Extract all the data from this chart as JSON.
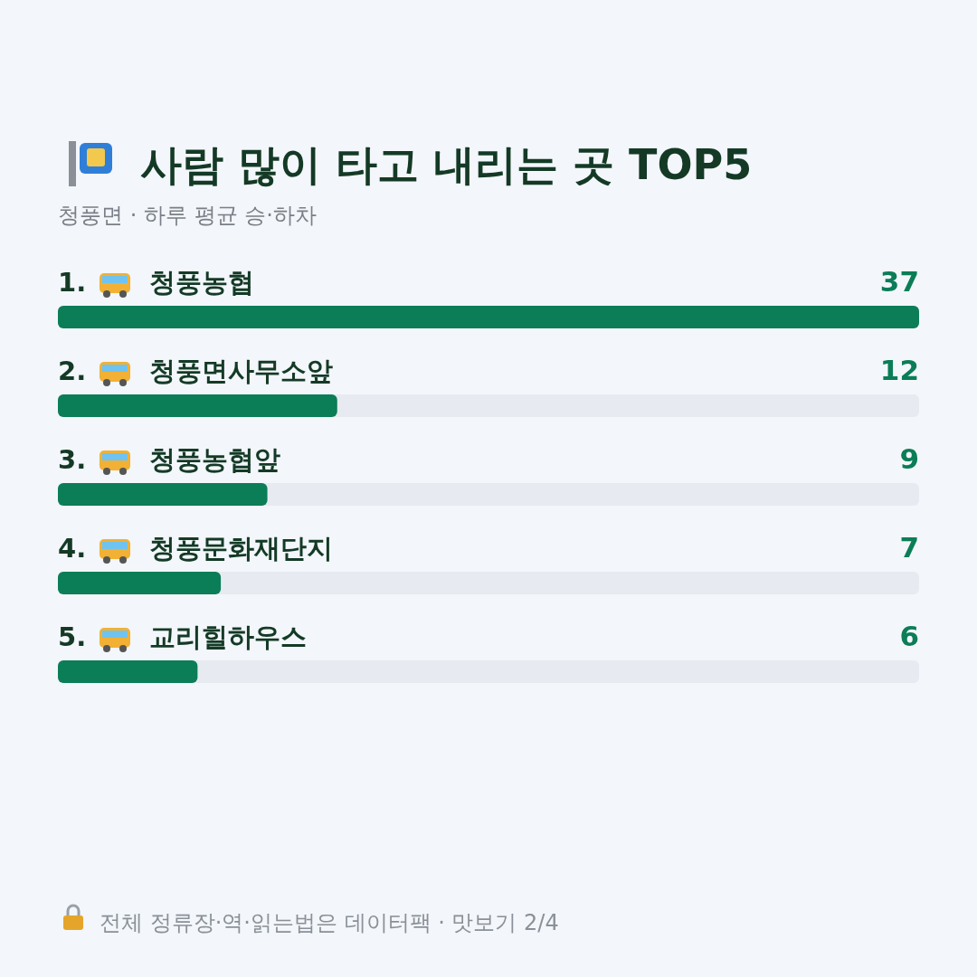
{
  "chart_data": {
    "type": "bar",
    "orientation": "horizontal",
    "title": "사람 많이 타고 내리는 곳 TOP5",
    "subtitle": "청풍면 · 하루 평균 승·하차",
    "categories": [
      "1. 청풍농협",
      "2. 청풍면사무소앞",
      "3. 청풍농협앞",
      "4. 청풍문화재단지",
      "5. 교리힐하우스"
    ],
    "values": [
      37,
      12,
      9,
      7,
      6
    ],
    "color": "#0b7d57",
    "data_labels": true,
    "annotations": [
      "전체 정류장·역·읽는법은 데이터팩 · 맛보기 2/4"
    ]
  }
}
